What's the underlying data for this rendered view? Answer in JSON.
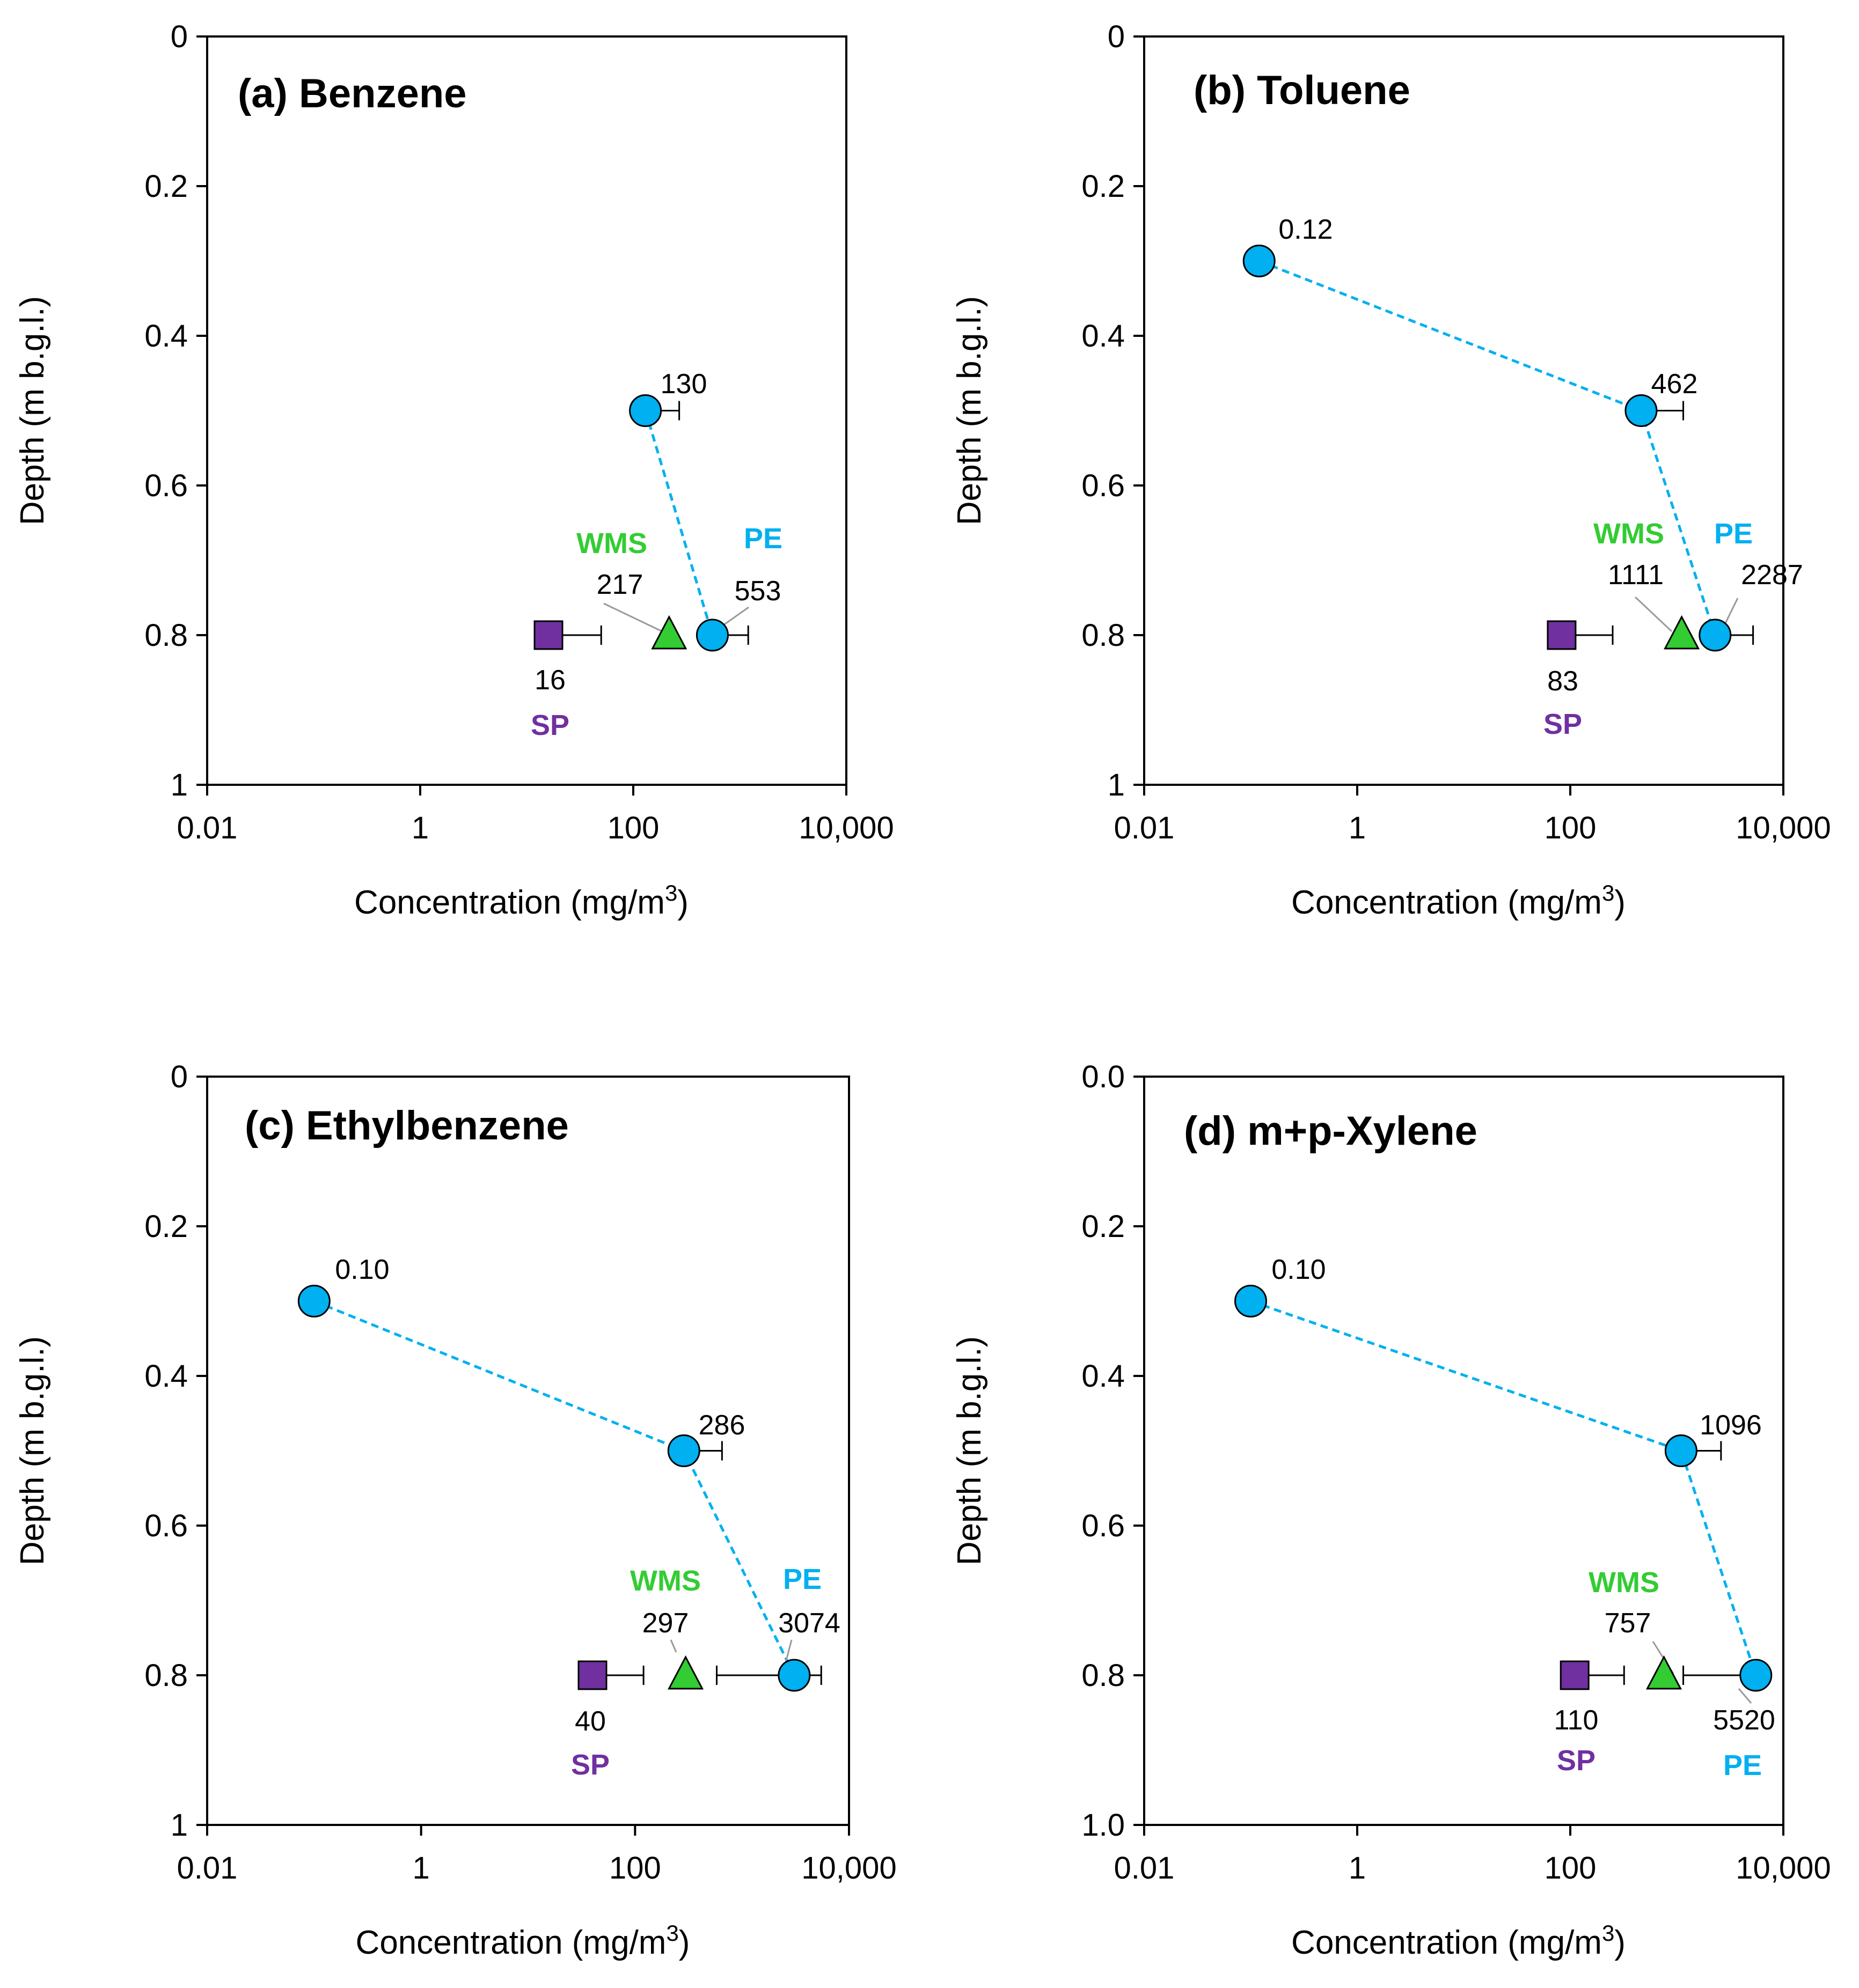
{
  "colors": {
    "PE": "#00b0f0",
    "WMS": "#33cc33",
    "SP": "#7030a0",
    "line": "#00b0f0"
  },
  "chart_data": [
    {
      "type": "scatter",
      "title": "(a) Benzene",
      "xlabel": "Concentration (mg/m",
      "xlabel_sup": "3",
      "xlabel_close": ")",
      "ylabel": "Depth (m b.g.l.)",
      "xscale": "log",
      "xlim": [
        0.01,
        10000
      ],
      "ylim": [
        0,
        1
      ],
      "xticks": [
        0.01,
        1,
        100,
        10000
      ],
      "xtick_labels": [
        "0.01",
        "1",
        "100",
        "10,000"
      ],
      "yticks": [
        0,
        0.2,
        0.4,
        0.6,
        0.8,
        1
      ],
      "ytick_labels": [
        "0",
        "0.2",
        "0.4",
        "0.6",
        "0.8",
        "1"
      ],
      "series": [
        {
          "name": "PE",
          "points": [
            {
              "x": 130,
              "y": 0.5,
              "label": "130",
              "err_hi": 270
            },
            {
              "x": 553,
              "y": 0.8,
              "label": "553",
              "err_hi": 1200
            }
          ]
        },
        {
          "name": "WMS",
          "points": [
            {
              "x": 217,
              "y": 0.8,
              "label": "217"
            }
          ]
        },
        {
          "name": "SP",
          "points": [
            {
              "x": 16,
              "y": 0.8,
              "label": "16",
              "err_hi": 50
            }
          ]
        }
      ]
    },
    {
      "type": "scatter",
      "title": "(b) Toluene",
      "xlabel": "Concentration (mg/m",
      "xlabel_sup": "3",
      "xlabel_close": ")",
      "ylabel": "Depth (m b.g.l.)",
      "xscale": "log",
      "xlim": [
        0.01,
        10000
      ],
      "ylim": [
        0,
        1
      ],
      "xticks": [
        0.01,
        1,
        100,
        10000
      ],
      "xtick_labels": [
        "0.01",
        "1",
        "100",
        "10,000"
      ],
      "yticks": [
        0,
        0.2,
        0.4,
        0.6,
        0.8,
        1
      ],
      "ytick_labels": [
        "0",
        "0.2",
        "0.4",
        "0.6",
        "0.8",
        "1"
      ],
      "series": [
        {
          "name": "PE",
          "points": [
            {
              "x": 0.12,
              "y": 0.3,
              "label": "0.12"
            },
            {
              "x": 462,
              "y": 0.5,
              "label": "462",
              "err_hi": 1150
            },
            {
              "x": 2287,
              "y": 0.8,
              "label": "2287",
              "err_hi": 5200
            }
          ]
        },
        {
          "name": "WMS",
          "points": [
            {
              "x": 1111,
              "y": 0.8,
              "label": "1111"
            }
          ]
        },
        {
          "name": "SP",
          "points": [
            {
              "x": 83,
              "y": 0.8,
              "label": "83",
              "err_hi": 250
            }
          ]
        }
      ]
    },
    {
      "type": "scatter",
      "title": "(c) Ethylbenzene",
      "xlabel": "Concentration (mg/m",
      "xlabel_sup": "3",
      "xlabel_close": ")",
      "ylabel": "Depth (m b.g.l.)",
      "xscale": "log",
      "xlim": [
        0.01,
        10000
      ],
      "ylim": [
        0,
        1
      ],
      "xticks": [
        0.01,
        1,
        100,
        10000
      ],
      "xtick_labels": [
        "0.01",
        "1",
        "100",
        "10,000"
      ],
      "yticks": [
        0,
        0.2,
        0.4,
        0.6,
        0.8,
        1
      ],
      "ytick_labels": [
        "0",
        "0.2",
        "0.4",
        "0.6",
        "0.8",
        "1"
      ],
      "series": [
        {
          "name": "PE",
          "points": [
            {
              "x": 0.1,
              "y": 0.3,
              "label": "0.10"
            },
            {
              "x": 286,
              "y": 0.5,
              "label": "286",
              "err_hi": 650
            },
            {
              "x": 3074,
              "y": 0.8,
              "label": "3074",
              "err_lo": 580,
              "err_hi": 5500
            }
          ]
        },
        {
          "name": "WMS",
          "points": [
            {
              "x": 297,
              "y": 0.8,
              "label": "297"
            }
          ]
        },
        {
          "name": "SP",
          "points": [
            {
              "x": 40,
              "y": 0.8,
              "label": "40",
              "err_hi": 120
            }
          ]
        }
      ]
    },
    {
      "type": "scatter",
      "title": "(d) m+p-Xylene",
      "xlabel": "Concentration (mg/m",
      "xlabel_sup": "3",
      "xlabel_close": ")",
      "ylabel": "Depth (m b.g.l.)",
      "xscale": "log",
      "xlim": [
        0.01,
        10000
      ],
      "ylim": [
        0,
        1
      ],
      "xticks": [
        0.01,
        1,
        100,
        10000
      ],
      "xtick_labels": [
        "0.01",
        "1",
        "100",
        "10,000"
      ],
      "yticks": [
        0,
        0.2,
        0.4,
        0.6,
        0.8,
        1
      ],
      "ytick_labels": [
        "0.0",
        "0.2",
        "0.4",
        "0.6",
        "0.8",
        "1.0"
      ],
      "series": [
        {
          "name": "PE",
          "points": [
            {
              "x": 0.1,
              "y": 0.3,
              "label": "0.10"
            },
            {
              "x": 1096,
              "y": 0.5,
              "label": "1096",
              "err_hi": 2600
            },
            {
              "x": 5520,
              "y": 0.8,
              "label": "5520",
              "err_lo": 1150
            }
          ]
        },
        {
          "name": "WMS",
          "points": [
            {
              "x": 757,
              "y": 0.8,
              "label": "757"
            }
          ]
        },
        {
          "name": "SP",
          "points": [
            {
              "x": 110,
              "y": 0.8,
              "label": "110",
              "err_hi": 320
            }
          ]
        }
      ]
    }
  ]
}
